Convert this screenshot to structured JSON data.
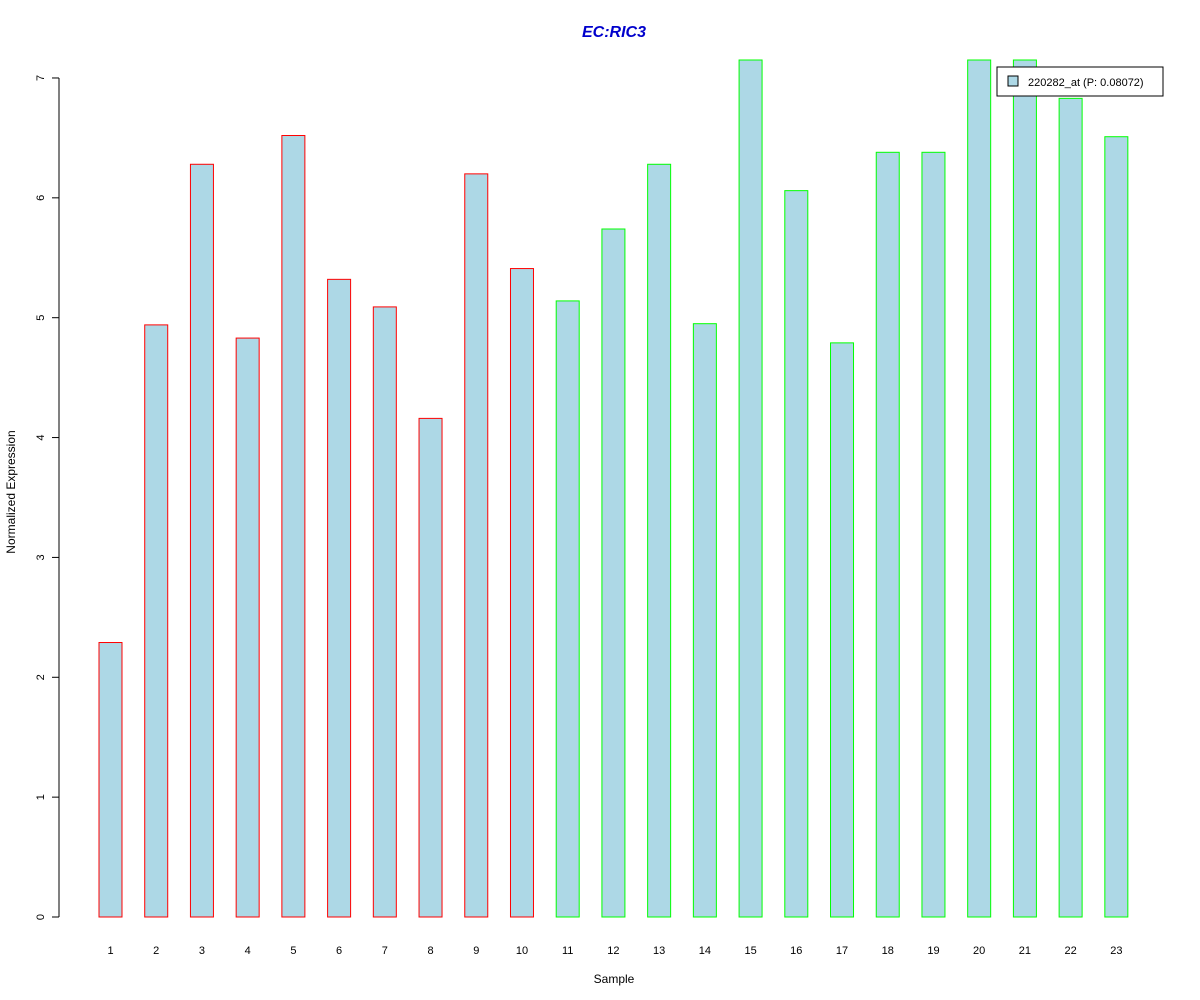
{
  "chart_data": {
    "type": "bar",
    "title": "EC:RIC3",
    "xlabel": "Sample",
    "ylabel": "Normalized Expression",
    "categories": [
      "1",
      "2",
      "3",
      "4",
      "5",
      "6",
      "7",
      "8",
      "9",
      "10",
      "11",
      "12",
      "13",
      "14",
      "15",
      "16",
      "17",
      "18",
      "19",
      "20",
      "21",
      "22",
      "23"
    ],
    "values": [
      2.29,
      4.94,
      6.28,
      4.83,
      6.52,
      5.32,
      5.09,
      4.16,
      6.2,
      5.41,
      5.14,
      5.74,
      6.28,
      4.95,
      7.15,
      6.06,
      4.79,
      6.38,
      6.38,
      7.15,
      7.15,
      6.83,
      6.51
    ],
    "groups": [
      "red",
      "red",
      "red",
      "red",
      "red",
      "red",
      "red",
      "red",
      "red",
      "red",
      "green",
      "green",
      "green",
      "green",
      "green",
      "green",
      "green",
      "green",
      "green",
      "green",
      "green",
      "green",
      "green"
    ],
    "ylim": [
      0,
      7.15
    ],
    "yticks": [
      0,
      1,
      2,
      3,
      4,
      5,
      6,
      7
    ],
    "grid": false,
    "legend": {
      "placement": "top-right",
      "entries": [
        "220282_at (P: 0.08072)"
      ]
    },
    "colors": {
      "title": "#0000CC",
      "bar_fill": "#ADD8E6",
      "outline_red": "#FF0000",
      "outline_green": "#00FF00",
      "axis": "#000000"
    }
  }
}
